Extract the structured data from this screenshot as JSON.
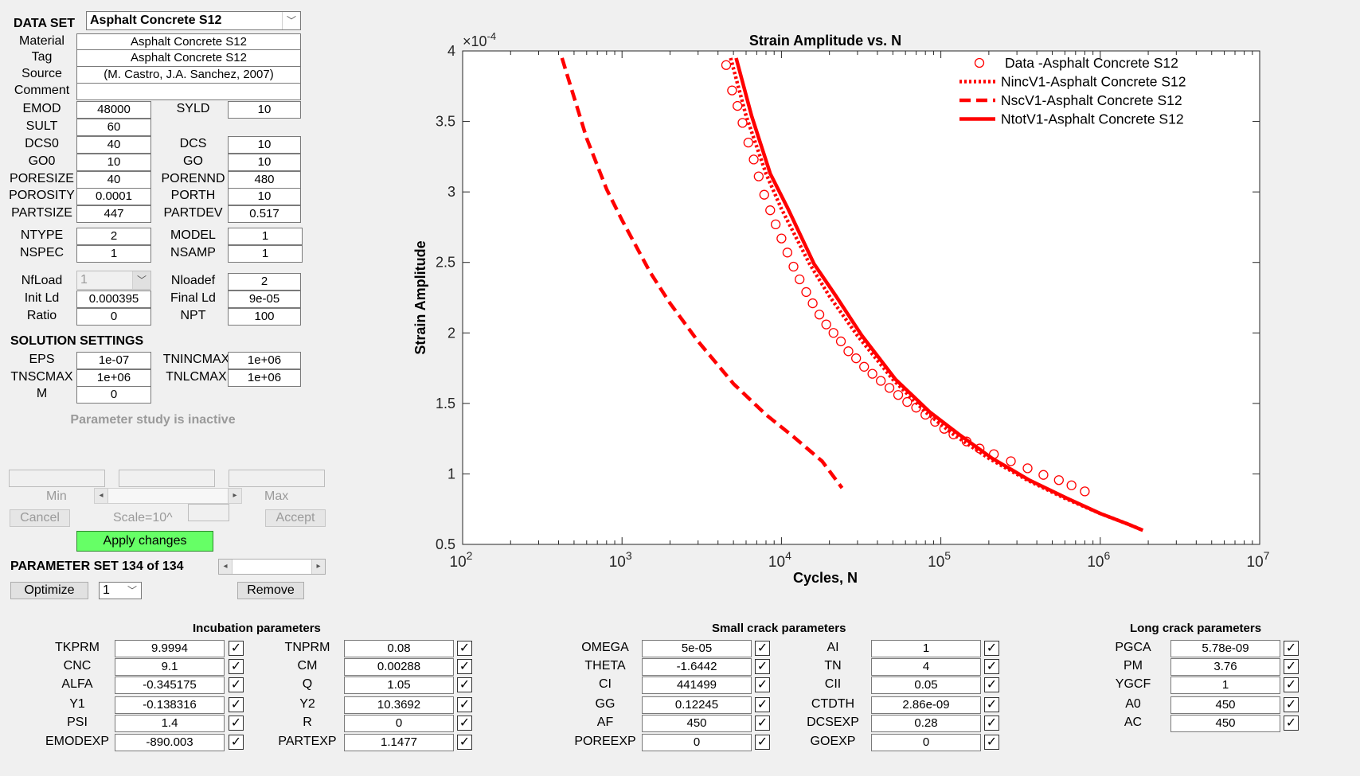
{
  "dataset": {
    "label": "DATA SET",
    "selected": "Asphalt Concrete S12"
  },
  "meta": [
    {
      "label": "Material",
      "value": "Asphalt Concrete S12"
    },
    {
      "label": "Tag",
      "value": "Asphalt Concrete S12"
    },
    {
      "label": "Source",
      "value": "(M. Castro, J.A. Sanchez, 2007)"
    },
    {
      "label": "Comment",
      "value": ""
    }
  ],
  "props": {
    "emod": {
      "label": "EMOD",
      "value": "48000"
    },
    "syld": {
      "label": "SYLD",
      "value": "10"
    },
    "sult": {
      "label": "SULT",
      "value": "60"
    },
    "dcs0": {
      "label": "DCS0",
      "value": "40"
    },
    "dcs": {
      "label": "DCS",
      "value": "10"
    },
    "go0": {
      "label": "GO0",
      "value": "10"
    },
    "go": {
      "label": "GO",
      "value": "10"
    },
    "poresize": {
      "label": "PORESIZE",
      "value": "40"
    },
    "porennd": {
      "label": "PORENND",
      "value": "480"
    },
    "porosity": {
      "label": "POROSITY",
      "value": "0.0001"
    },
    "porth": {
      "label": "PORTH",
      "value": "10"
    },
    "partsize": {
      "label": "PARTSIZE",
      "value": "447"
    },
    "partdev": {
      "label": "PARTDEV",
      "value": "0.517"
    },
    "ntype": {
      "label": "NTYPE",
      "value": "2"
    },
    "model": {
      "label": "MODEL",
      "value": "1"
    },
    "nspec": {
      "label": "NSPEC",
      "value": "1"
    },
    "nsamp": {
      "label": "NSAMP",
      "value": "1"
    }
  },
  "load": {
    "nfload": {
      "label": "NfLoad",
      "value": "1"
    },
    "nloadef": {
      "label": "Nloadef",
      "value": "2"
    },
    "initld": {
      "label": "Init Ld",
      "value": "0.000395"
    },
    "finalld": {
      "label": "Final Ld",
      "value": "9e-05"
    },
    "ratio": {
      "label": "Ratio",
      "value": "0"
    },
    "npt": {
      "label": "NPT",
      "value": "100"
    }
  },
  "solution": {
    "title": "SOLUTION SETTINGS",
    "eps": {
      "label": "EPS",
      "value": "1e-07"
    },
    "tnincmax": {
      "label": "TNINCMAX",
      "value": "1e+06"
    },
    "tnscmax": {
      "label": "TNSCMAX",
      "value": "1e+06"
    },
    "tnlcmax": {
      "label": "TNLCMAX",
      "value": "1e+06"
    },
    "m": {
      "label": "M",
      "value": "0"
    }
  },
  "study": {
    "status": "Parameter study is inactive",
    "min_label": "Min",
    "max_label": "Max",
    "cancel": "Cancel",
    "scale": "Scale=10^",
    "accept": "Accept",
    "apply": "Apply changes"
  },
  "paramset": {
    "label": "PARAMETER SET 134 of 134",
    "optimize": "Optimize",
    "opt_value": "1",
    "remove": "Remove"
  },
  "incubation": {
    "title": "Incubation parameters",
    "left": [
      {
        "label": "TKPRM",
        "value": "9.9994"
      },
      {
        "label": "CNC",
        "value": "9.1"
      },
      {
        "label": "ALFA",
        "value": "-0.345175"
      },
      {
        "label": "Y1",
        "value": "-0.138316"
      },
      {
        "label": "PSI",
        "value": "1.4"
      },
      {
        "label": "EMODEXP",
        "value": "-890.003"
      }
    ],
    "right": [
      {
        "label": "TNPRM",
        "value": "0.08"
      },
      {
        "label": "CM",
        "value": "0.00288"
      },
      {
        "label": "Q",
        "value": "1.05"
      },
      {
        "label": "Y2",
        "value": "10.3692"
      },
      {
        "label": "R",
        "value": "0"
      },
      {
        "label": "PARTEXP",
        "value": "1.1477"
      }
    ]
  },
  "smallcrack": {
    "title": "Small crack parameters",
    "left": [
      {
        "label": "OMEGA",
        "value": "5e-05"
      },
      {
        "label": "THETA",
        "value": "-1.6442"
      },
      {
        "label": "CI",
        "value": "441499"
      },
      {
        "label": "GG",
        "value": "0.12245"
      },
      {
        "label": "AF",
        "value": "450"
      },
      {
        "label": "POREEXP",
        "value": "0"
      }
    ],
    "right": [
      {
        "label": "AI",
        "value": "1"
      },
      {
        "label": "TN",
        "value": "4"
      },
      {
        "label": "CII",
        "value": "0.05"
      },
      {
        "label": "CTDTH",
        "value": "2.86e-09"
      },
      {
        "label": "DCSEXP",
        "value": "0.28"
      },
      {
        "label": "GOEXP",
        "value": "0"
      }
    ]
  },
  "longcrack": {
    "title": "Long crack parameters",
    "items": [
      {
        "label": "PGCA",
        "value": "5.78e-09"
      },
      {
        "label": "PM",
        "value": "3.76"
      },
      {
        "label": "YGCF",
        "value": "1"
      },
      {
        "label": "A0",
        "value": "450"
      },
      {
        "label": "AC",
        "value": "450"
      }
    ]
  },
  "chart_data": {
    "type": "line",
    "title": "Strain Amplitude vs. N",
    "xlabel": "Cycles, N",
    "ylabel": "Strain Amplitude",
    "yscale_label": "×10",
    "yscale_exp": "-4",
    "xscale": "log",
    "xlim": [
      100,
      10000000
    ],
    "ylim": [
      5e-05,
      0.0004
    ],
    "grid": false,
    "legend_position": "top-right",
    "color": "#ff0000",
    "x_ticks": [
      {
        "base": "10",
        "exp": "2"
      },
      {
        "base": "10",
        "exp": "3"
      },
      {
        "base": "10",
        "exp": "4"
      },
      {
        "base": "10",
        "exp": "5"
      },
      {
        "base": "10",
        "exp": "6"
      },
      {
        "base": "10",
        "exp": "7"
      }
    ],
    "y_ticks": [
      "0.5",
      "1",
      "1.5",
      "2",
      "2.5",
      "3",
      "3.5",
      "4"
    ],
    "series": [
      {
        "name": "Data -Asphalt Concrete S12",
        "style": "circle",
        "x": [
          4500,
          4900,
          5300,
          5700,
          6200,
          6700,
          7200,
          7800,
          8500,
          9200,
          10000,
          10900,
          11900,
          13000,
          14300,
          15700,
          17300,
          19100,
          21200,
          23600,
          26300,
          29400,
          33000,
          37200,
          42000,
          47600,
          54000,
          61500,
          70000,
          80000,
          92000,
          105000,
          120000,
          145000,
          175000,
          215000,
          275000,
          350000,
          440000,
          550000,
          660000,
          800000
        ],
        "y": [
          0.00039,
          0.000372,
          0.000361,
          0.000349,
          0.000335,
          0.000323,
          0.000311,
          0.000298,
          0.000287,
          0.000277,
          0.000267,
          0.000257,
          0.000247,
          0.000238,
          0.000229,
          0.000221,
          0.000213,
          0.000206,
          0.0002,
          0.000194,
          0.000187,
          0.000182,
          0.000176,
          0.000171,
          0.000166,
          0.000161,
          0.000156,
          0.000151,
          0.000147,
          0.000142,
          0.000137,
          0.000132,
          0.000128,
          0.000123,
          0.000118,
          0.000114,
          0.000109,
          0.000104,
          9.93e-05,
          9.56e-05,
          9.19e-05,
          8.76e-05
        ]
      },
      {
        "name": "NincV1-Asphalt Concrete S12",
        "style": "dotted",
        "x": [
          4800,
          6000,
          8000,
          10000,
          15000,
          20000,
          30000,
          50000,
          80000,
          120000,
          200000,
          350000,
          600000,
          1000000,
          1500000,
          1850000
        ],
        "y": [
          0.000395,
          0.000354,
          0.000313,
          0.000288,
          0.000249,
          0.000226,
          0.000198,
          0.000167,
          0.000144,
          0.000128,
          0.000111,
          9.55e-05,
          8.27e-05,
          7.19e-05,
          6.43e-05,
          6e-05
        ]
      },
      {
        "name": "NscV1-Asphalt Concrete S12",
        "style": "dashed",
        "x": [
          420,
          600,
          800,
          1000,
          1500,
          2000,
          3000,
          5000,
          8000,
          12000,
          18000,
          24000
        ],
        "y": [
          0.000395,
          0.000338,
          0.000302,
          0.00028,
          0.000243,
          0.000221,
          0.000194,
          0.000164,
          0.000142,
          0.000126,
          0.000109,
          9e-05
        ]
      },
      {
        "name": "NtotV1-Asphalt Concrete S12",
        "style": "solid",
        "x": [
          5200,
          6500,
          8500,
          11000,
          16000,
          22000,
          32000,
          52000,
          85000,
          130000,
          210000,
          360000,
          620000,
          1000000,
          1500000,
          1850000
        ],
        "y": [
          0.000395,
          0.000354,
          0.000313,
          0.000288,
          0.000249,
          0.000226,
          0.000198,
          0.000167,
          0.000144,
          0.000128,
          0.000111,
          9.55e-05,
          8.27e-05,
          7.19e-05,
          6.43e-05,
          6e-05
        ]
      }
    ]
  }
}
